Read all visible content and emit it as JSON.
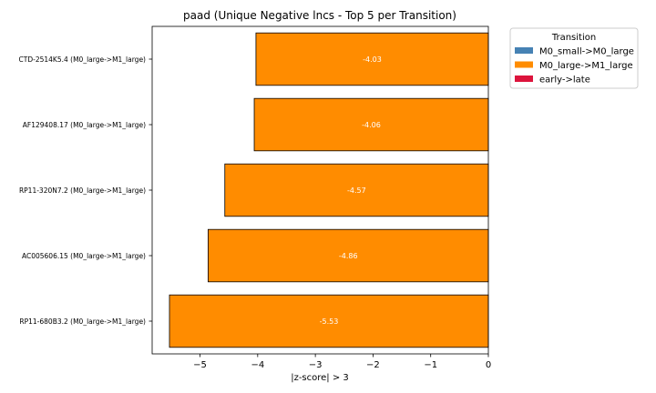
{
  "chart_data": {
    "type": "bar",
    "orientation": "horizontal",
    "title": "paad (Unique Negative lncs - Top 5 per Transition)",
    "xlabel": "|z-score| > 3",
    "ylabel": "",
    "xlim": [
      -5.83,
      0
    ],
    "xticks": [
      -5,
      -4,
      -3,
      -2,
      -1,
      0
    ],
    "xtick_labels": [
      "−5",
      "−4",
      "−3",
      "−2",
      "−1",
      "0"
    ],
    "categories": [
      "CTD-2514K5.4 (M0_large->M1_large)",
      "AF129408.17 (M0_large->M1_large)",
      "RP11-320N7.2 (M0_large->M1_large)",
      "AC005606.15 (M0_large->M1_large)",
      "RP11-680B3.2 (M0_large->M1_large)"
    ],
    "values": [
      -4.03,
      -4.06,
      -4.57,
      -4.86,
      -5.53
    ],
    "data_labels": [
      "-4.03",
      "-4.06",
      "-4.57",
      "-4.86",
      "-5.53"
    ],
    "series_group": [
      "M0_large->M1_large",
      "M0_large->M1_large",
      "M0_large->M1_large",
      "M0_large->M1_large",
      "M0_large->M1_large"
    ],
    "grid": false,
    "legend": {
      "title": "Transition",
      "placement": "outside upper right",
      "entries": [
        {
          "name": "M0_small->M0_large",
          "color": "#4682b4"
        },
        {
          "name": "M0_large->M1_large",
          "color": "#ff8c00"
        },
        {
          "name": "early->late",
          "color": "#dc143c"
        }
      ]
    }
  }
}
